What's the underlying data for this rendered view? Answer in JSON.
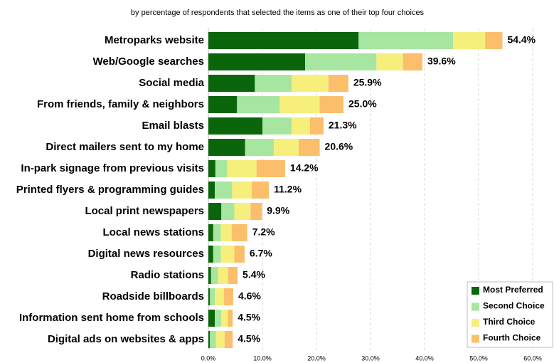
{
  "chart_data": {
    "type": "stacked-barh",
    "subtitle": "by percentage of respondents that selected the items as one of their top four choices",
    "categories": [
      "Metroparks website",
      "Web/Google searches",
      "Social media",
      "From friends, family & neighbors",
      "Email blasts",
      "Direct mailers sent to my home",
      "In-park signage from previous visits",
      "Printed flyers & programming guides",
      "Local print newspapers",
      "Local news stations",
      "Digital news resources",
      "Radio stations",
      "Roadside billboards",
      "Information sent home from schools",
      "Digital ads on websites & apps"
    ],
    "series": [
      {
        "name": "Most Preferred",
        "color": "#0b660b",
        "values": [
          27.8,
          17.9,
          8.6,
          5.3,
          10.0,
          6.8,
          1.3,
          1.2,
          2.4,
          0.9,
          0.9,
          0.5,
          0.3,
          1.2,
          0.3
        ]
      },
      {
        "name": "Second Choice",
        "color": "#a6e6a1",
        "values": [
          17.5,
          13.2,
          6.8,
          7.9,
          5.4,
          5.3,
          2.2,
          3.2,
          2.4,
          1.4,
          1.4,
          1.3,
          0.9,
          1.2,
          1.1
        ]
      },
      {
        "name": "Third Choice",
        "color": "#f6ef7c",
        "values": [
          5.9,
          4.9,
          6.8,
          7.4,
          3.4,
          4.6,
          5.4,
          3.6,
          3.0,
          2.0,
          2.5,
          1.8,
          1.7,
          1.2,
          1.6
        ]
      },
      {
        "name": "Fourth Choice",
        "color": "#fbbf6b",
        "values": [
          3.2,
          3.6,
          3.7,
          4.4,
          2.5,
          3.9,
          5.3,
          3.2,
          2.1,
          2.9,
          1.9,
          1.8,
          1.7,
          0.9,
          1.5
        ]
      }
    ],
    "totals": [
      54.4,
      39.6,
      25.9,
      25.0,
      21.3,
      20.6,
      14.2,
      11.2,
      9.9,
      7.2,
      6.7,
      5.4,
      4.6,
      4.5,
      4.5
    ],
    "totals_labels": [
      "54.4%",
      "39.6%",
      "25.9%",
      "25.0%",
      "21.3%",
      "20.6%",
      "14.2%",
      "11.2%",
      "9.9%",
      "7.2%",
      "6.7%",
      "5.4%",
      "4.6%",
      "4.5%",
      "4.5%"
    ],
    "xlim": [
      0,
      60
    ],
    "xticks": [
      {
        "value": 0,
        "label": "0.0%"
      },
      {
        "value": 10,
        "label": "10.0%"
      },
      {
        "value": 20,
        "label": "20.0%"
      },
      {
        "value": 30,
        "label": "30.0%"
      },
      {
        "value": 40,
        "label": "40.0%"
      },
      {
        "value": 50,
        "label": "50.0%"
      },
      {
        "value": 60,
        "label": "60.0%"
      }
    ],
    "grid": true,
    "legend": "lower right"
  }
}
